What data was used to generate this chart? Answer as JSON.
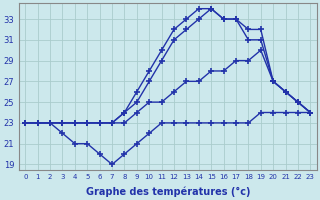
{
  "xlabel": "Graphe des températures (°c)",
  "background_color": "#cce8ec",
  "line_color": "#2233aa",
  "grid_color": "#aacccc",
  "xlim": [
    -0.5,
    23.5
  ],
  "ylim": [
    18.5,
    34.5
  ],
  "yticks": [
    19,
    21,
    23,
    25,
    27,
    29,
    31,
    33
  ],
  "xticks": [
    0,
    1,
    2,
    3,
    4,
    5,
    6,
    7,
    8,
    9,
    10,
    11,
    12,
    13,
    14,
    15,
    16,
    17,
    18,
    19,
    20,
    21,
    22,
    23
  ],
  "series": [
    {
      "x": [
        0,
        1,
        2,
        3,
        4,
        5,
        6,
        7,
        8,
        9,
        10,
        11,
        12,
        13,
        14,
        15,
        16,
        17,
        18,
        19,
        20,
        21,
        22,
        23
      ],
      "y": [
        23,
        23,
        23,
        23,
        23,
        23,
        23,
        23,
        24,
        26,
        28,
        30,
        32,
        33,
        34,
        34,
        33,
        33,
        32,
        32,
        27,
        26,
        25,
        24
      ],
      "color": "#2233aa",
      "marker": "+",
      "markersize": 4,
      "linewidth": 1.0
    },
    {
      "x": [
        0,
        1,
        2,
        3,
        4,
        5,
        6,
        7,
        8,
        9,
        10,
        11,
        12,
        13,
        14,
        15,
        16,
        17,
        18,
        19,
        20,
        21,
        22,
        23
      ],
      "y": [
        23,
        23,
        23,
        23,
        23,
        23,
        23,
        23,
        24,
        25,
        27,
        29,
        31,
        32,
        33,
        34,
        33,
        33,
        31,
        31,
        27,
        26,
        25,
        24
      ],
      "color": "#2233aa",
      "marker": "+",
      "markersize": 4,
      "linewidth": 1.0
    },
    {
      "x": [
        0,
        1,
        2,
        3,
        4,
        5,
        6,
        7,
        8,
        9,
        10,
        11,
        12,
        13,
        14,
        15,
        16,
        17,
        18,
        19,
        20,
        21,
        22,
        23
      ],
      "y": [
        23,
        23,
        23,
        23,
        23,
        23,
        23,
        23,
        23,
        24,
        25,
        25,
        26,
        27,
        27,
        28,
        28,
        29,
        29,
        30,
        27,
        26,
        25,
        24
      ],
      "color": "#2233aa",
      "marker": "+",
      "markersize": 4,
      "linewidth": 1.0
    },
    {
      "x": [
        0,
        1,
        2,
        3,
        4,
        5,
        6,
        7,
        8,
        9,
        10,
        11,
        12,
        13,
        14,
        15,
        16,
        17,
        18,
        19,
        20,
        21,
        22,
        23
      ],
      "y": [
        23,
        23,
        23,
        22,
        21,
        21,
        20,
        19,
        20,
        21,
        22,
        23,
        23,
        23,
        23,
        23,
        23,
        23,
        23,
        24,
        24,
        24,
        24,
        24
      ],
      "color": "#2233aa",
      "marker": "+",
      "markersize": 4,
      "linewidth": 1.0
    }
  ]
}
